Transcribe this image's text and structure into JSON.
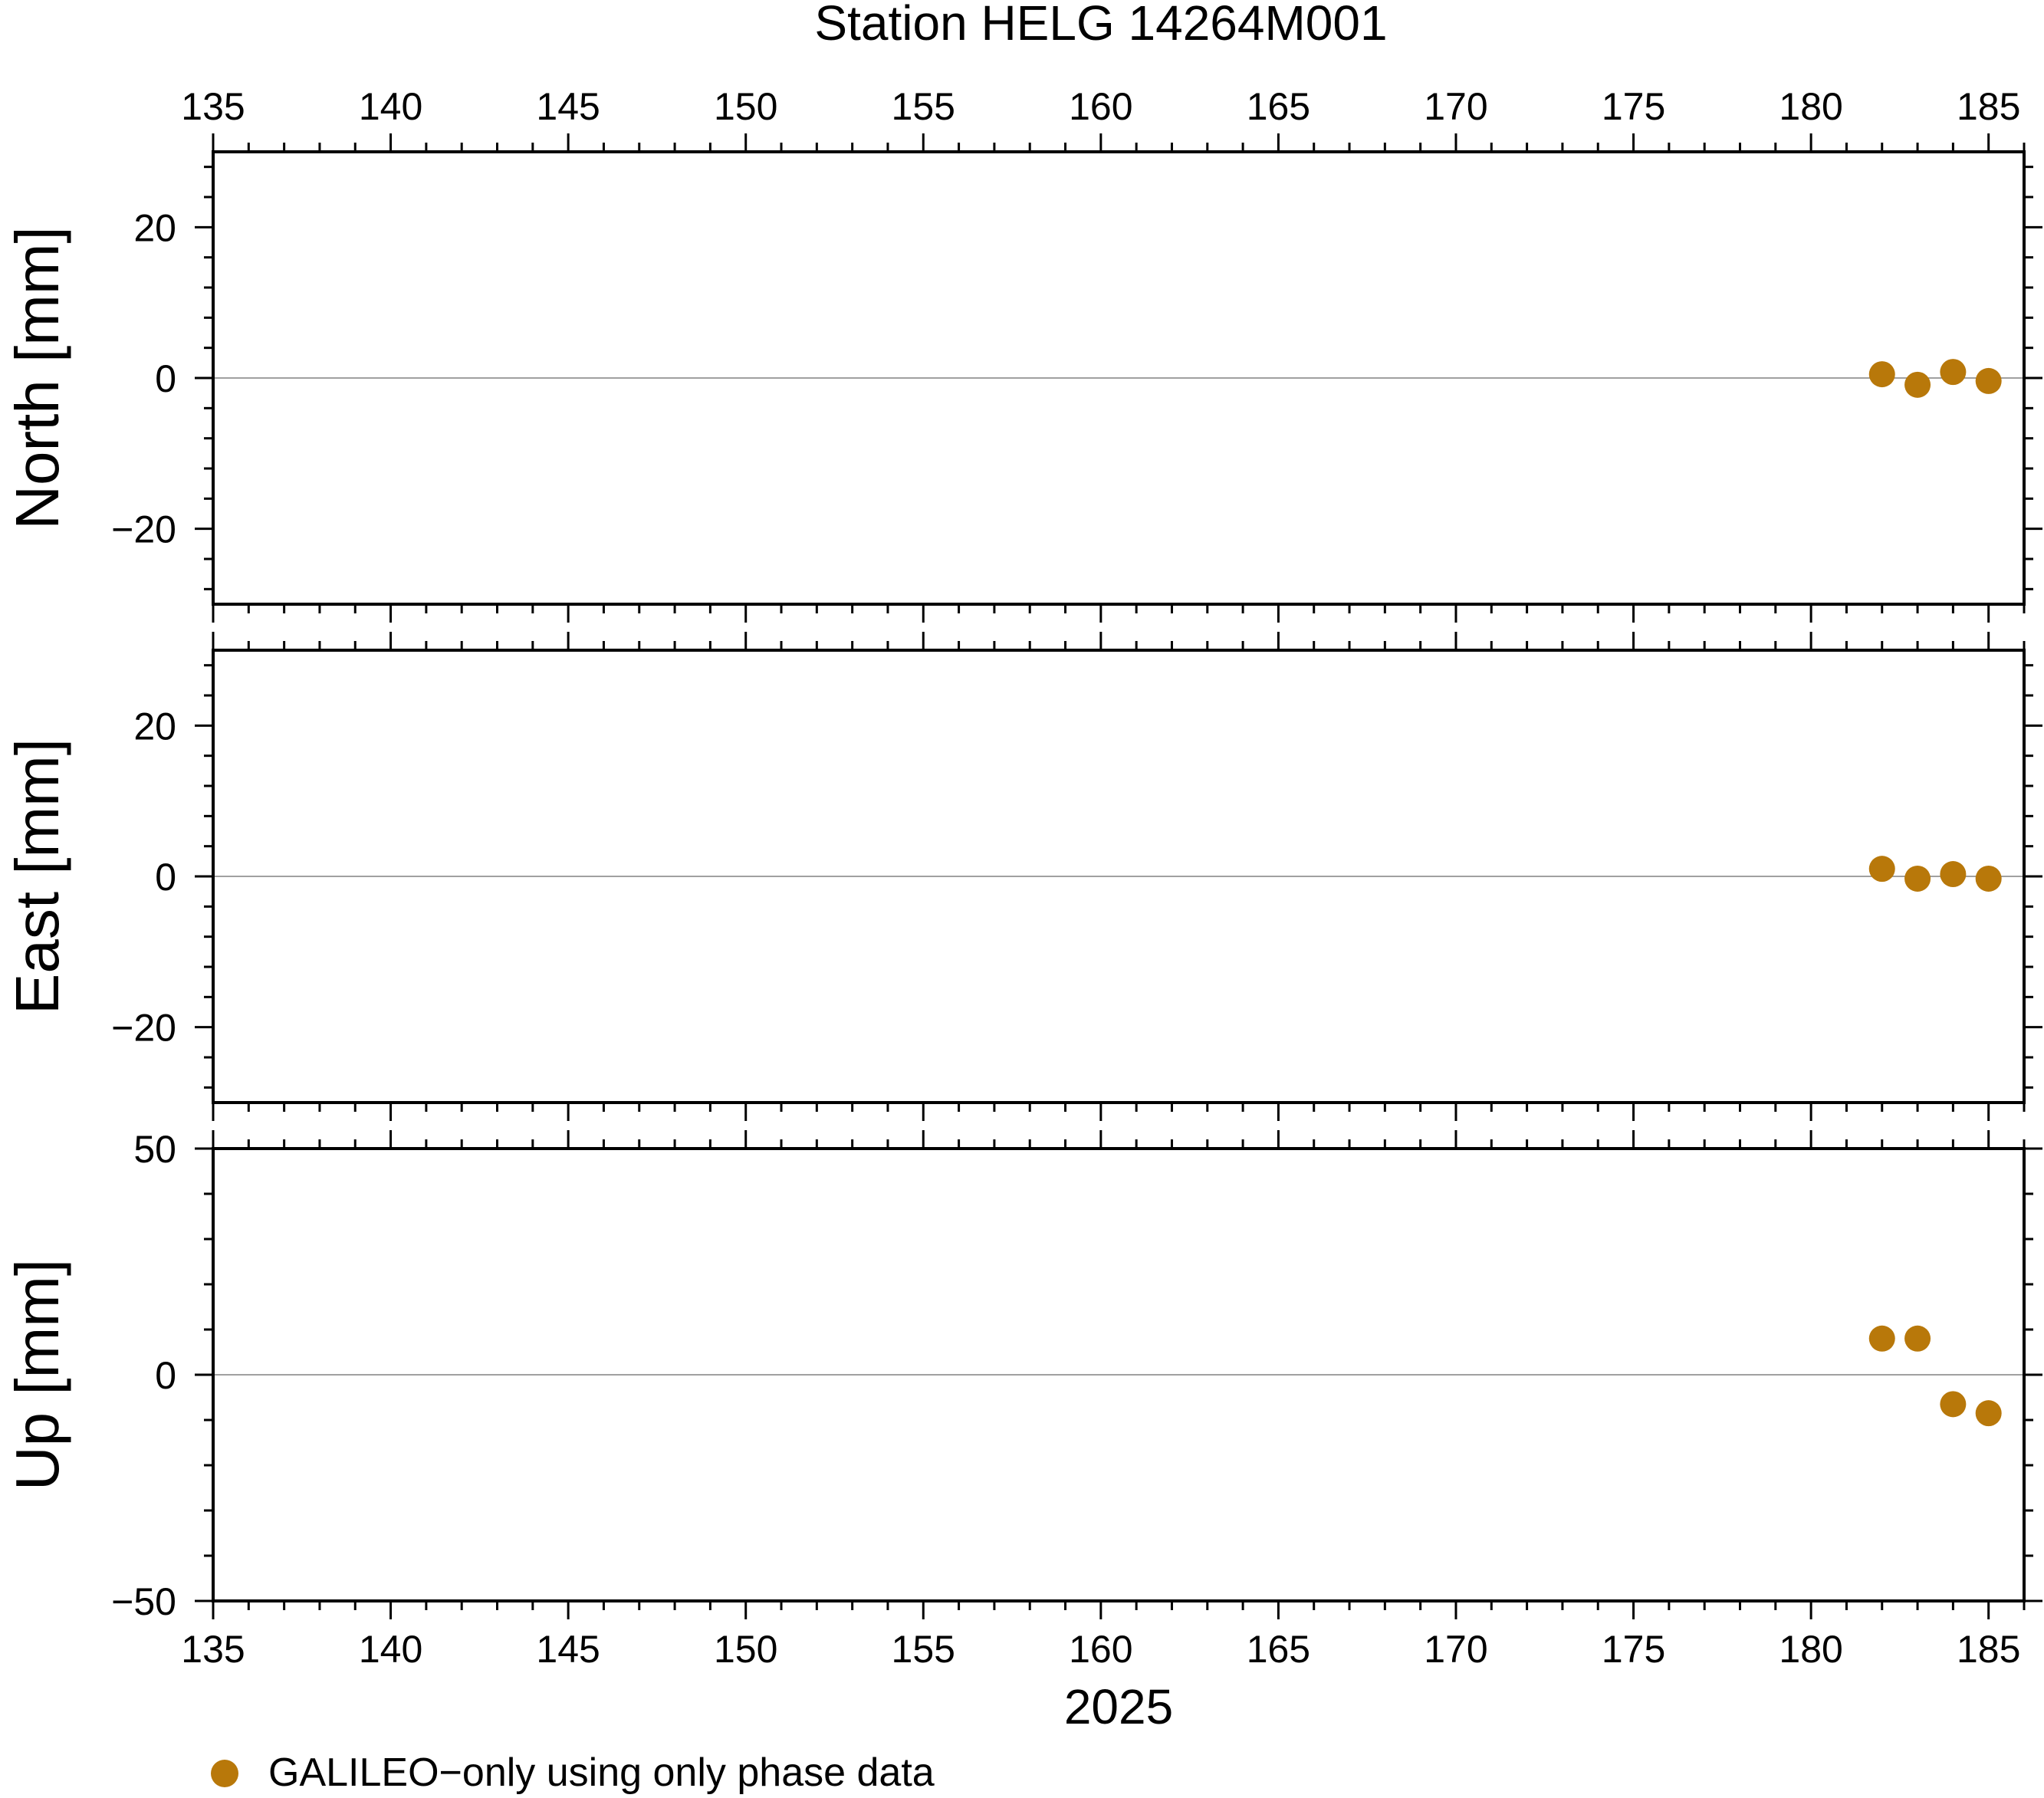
{
  "figure": {
    "title": "Station HELG 14264M001",
    "x_label": "2025",
    "legend_label": "GALILEO−only using only phase data"
  },
  "colors": {
    "marker": "#b8780a",
    "zero_line": "#808080",
    "axis": "#000000",
    "background": "#ffffff"
  },
  "chart_data": [
    {
      "type": "scatter",
      "panel": "north",
      "ylabel": "North [mm]",
      "xlim": [
        135,
        186
      ],
      "ylim": [
        -30,
        30
      ],
      "x_ticks": [
        135,
        140,
        145,
        150,
        155,
        160,
        165,
        170,
        175,
        180,
        185
      ],
      "y_ticks": [
        -20,
        0,
        20
      ],
      "zero_line": true,
      "series": [
        {
          "name": "GALILEO−only using only phase data",
          "x": [
            182,
            183,
            184,
            185
          ],
          "y": [
            0.5,
            -0.9,
            0.8,
            -0.4
          ]
        }
      ]
    },
    {
      "type": "scatter",
      "panel": "east",
      "ylabel": "East [mm]",
      "xlim": [
        135,
        186
      ],
      "ylim": [
        -30,
        30
      ],
      "x_ticks": [
        135,
        140,
        145,
        150,
        155,
        160,
        165,
        170,
        175,
        180,
        185
      ],
      "y_ticks": [
        -20,
        0,
        20
      ],
      "zero_line": true,
      "series": [
        {
          "name": "GALILEO−only using only phase data",
          "x": [
            182,
            183,
            184,
            185
          ],
          "y": [
            1.0,
            -0.3,
            0.3,
            -0.3
          ]
        }
      ]
    },
    {
      "type": "scatter",
      "panel": "up",
      "ylabel": "Up [mm]",
      "xlim": [
        135,
        186
      ],
      "ylim": [
        -50,
        50
      ],
      "x_ticks": [
        135,
        140,
        145,
        150,
        155,
        160,
        165,
        170,
        175,
        180,
        185
      ],
      "y_ticks": [
        -50,
        0,
        50
      ],
      "zero_line": true,
      "series": [
        {
          "name": "GALILEO−only using only phase data",
          "x": [
            182,
            183,
            184,
            185
          ],
          "y": [
            8.0,
            8.0,
            -6.5,
            -8.5
          ]
        }
      ]
    }
  ]
}
